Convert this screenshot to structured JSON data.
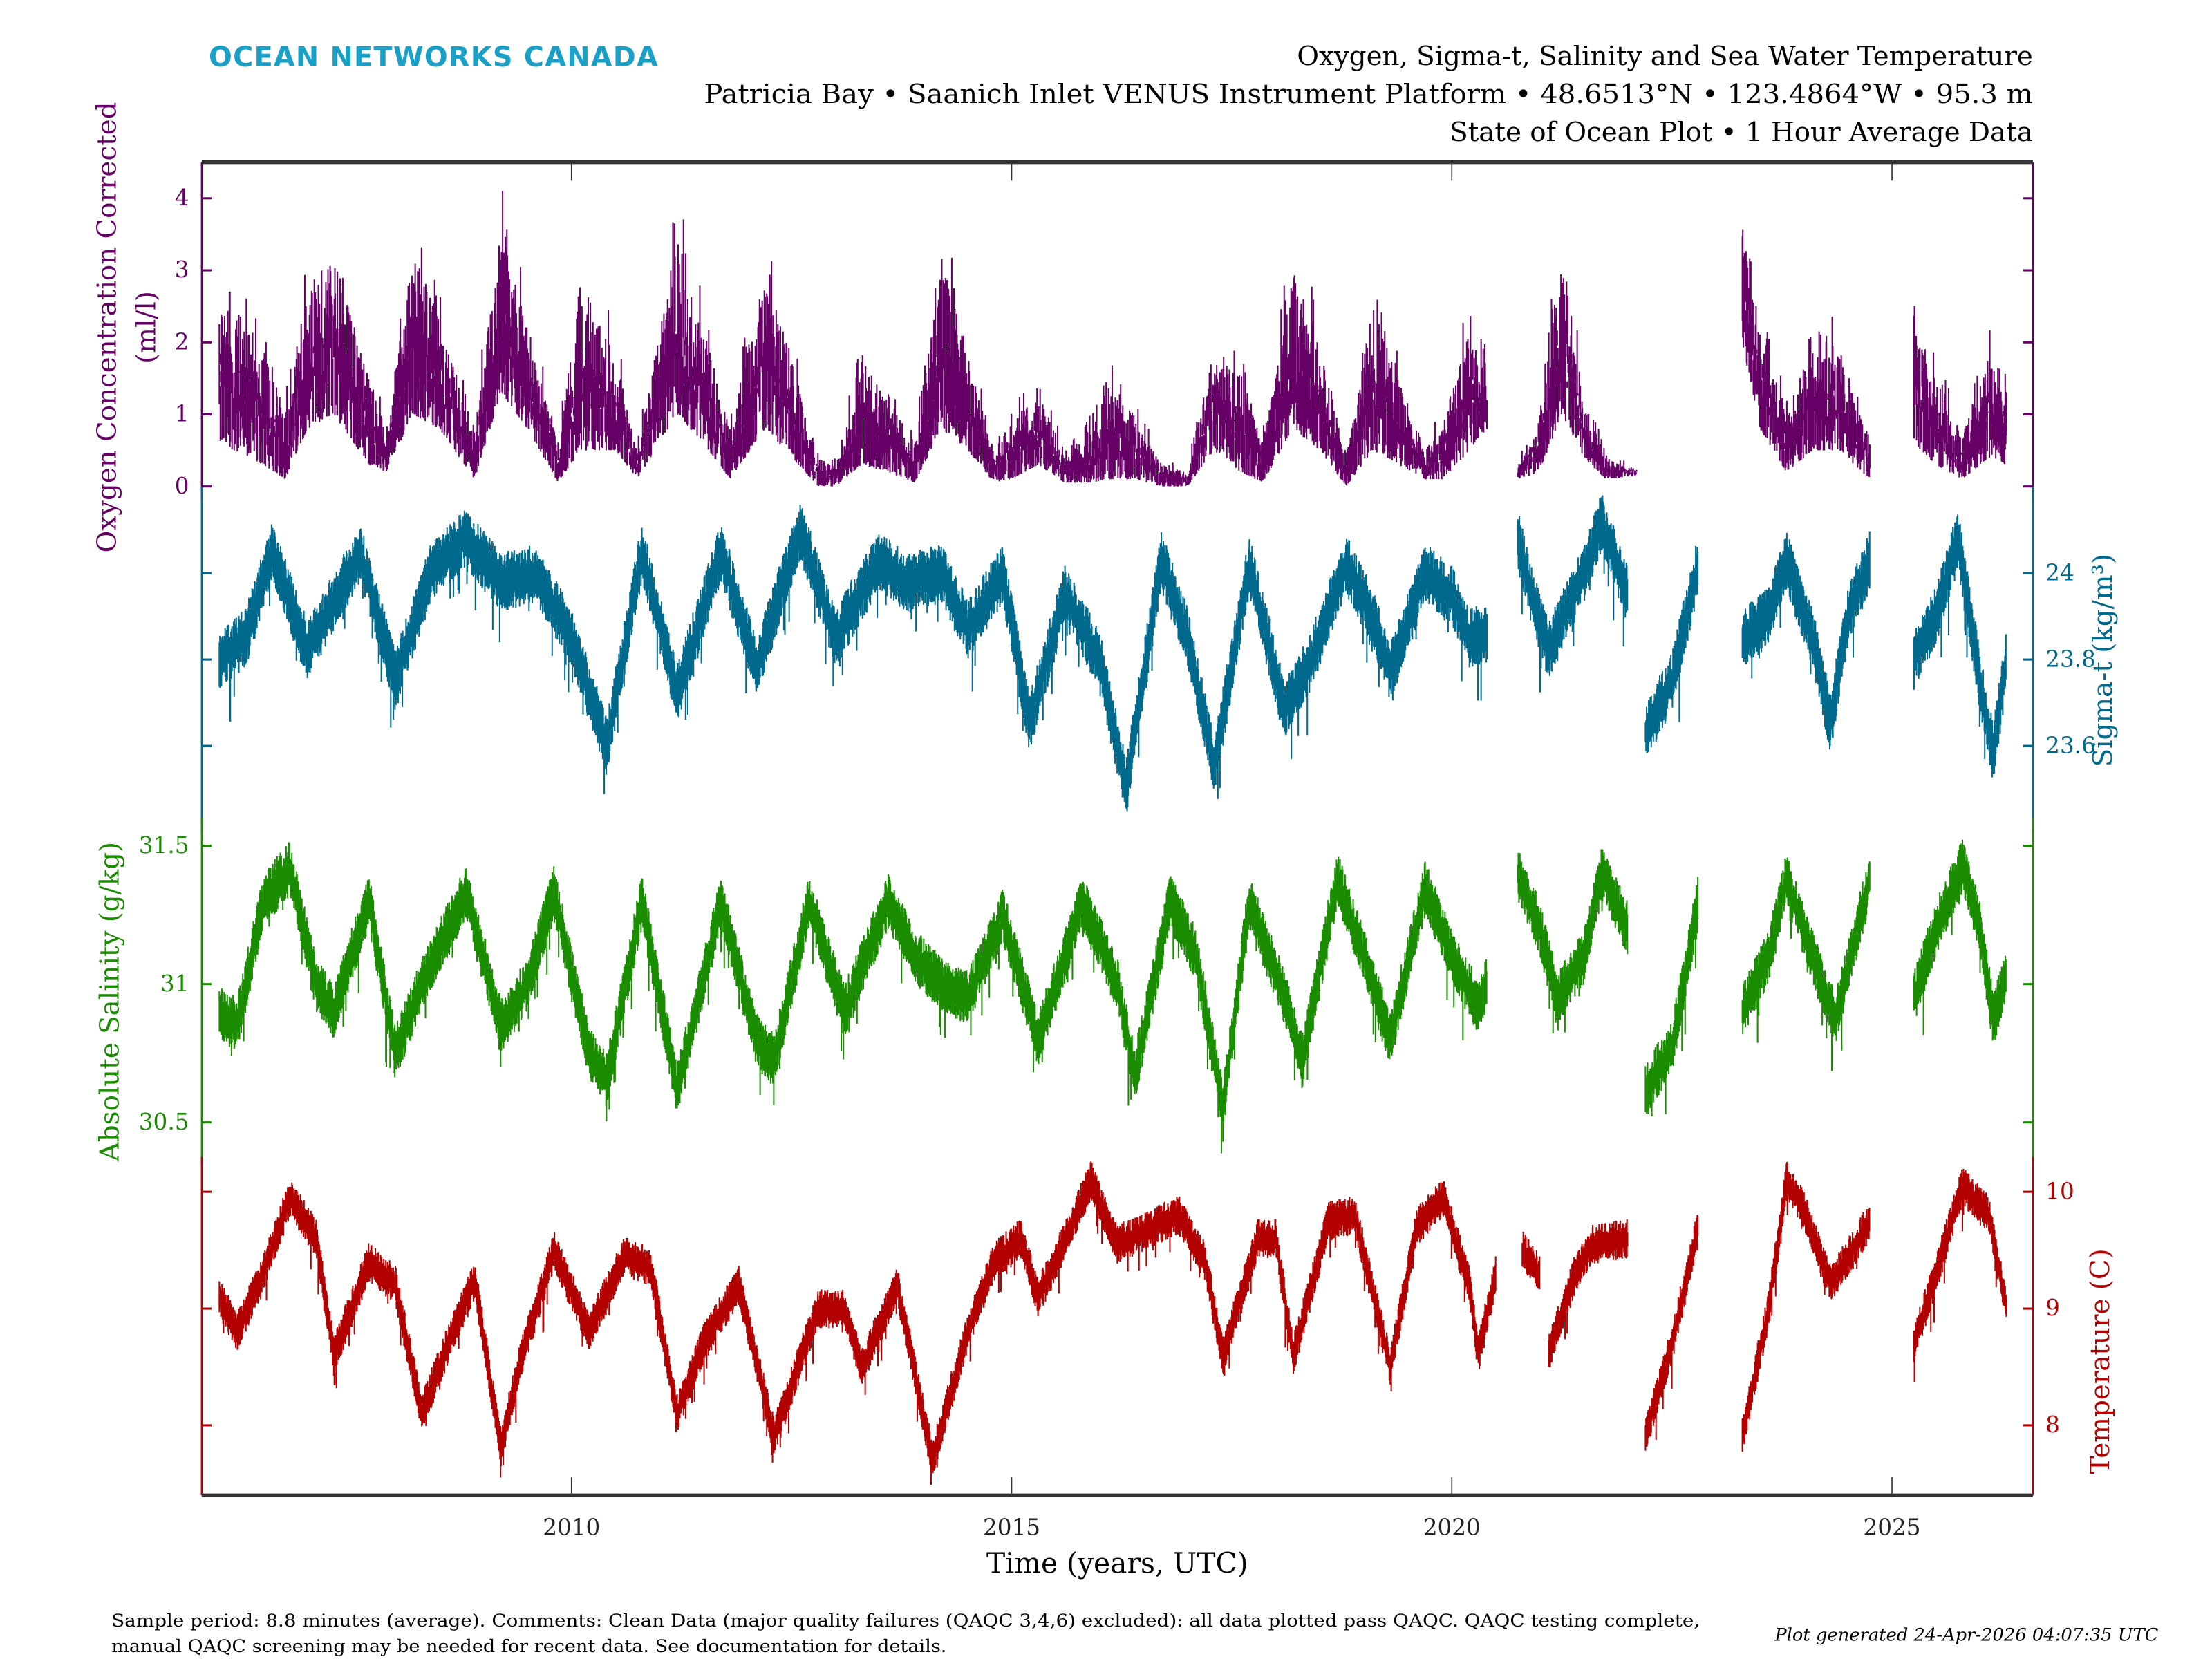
{
  "header": {
    "logo": "OCEAN NETWORKS CANADA",
    "title_line1": "Oxygen, Sigma-t, Salinity and Sea Water Temperature",
    "title_line2": "Patricia Bay • Saanich Inlet VENUS Instrument Platform • 48.6513°N • 123.4864°W • 95.3 m",
    "title_line3": "State of Ocean Plot • 1 Hour Average Data"
  },
  "footer": {
    "comment_line1": "Sample period: 8.8 minutes (average). Comments: Clean Data (major quality failures (QAQC 3,4,6) excluded): all data plotted pass QAQC. QAQC testing complete,",
    "comment_line2": "manual QAQC screening may be needed for recent data. See documentation for details.",
    "generated": "Plot generated 24-Apr-2026 04:07:35 UTC"
  },
  "colors": {
    "logo": "#1aa0c6",
    "oxygen": "#660066",
    "sigma": "#006a8e",
    "salinity": "#1a8c00",
    "temperature": "#b30000",
    "axis": "#333333"
  },
  "chart_data": {
    "type": "line",
    "xlabel": "Time (years, UTC)",
    "xlim": [
      2005.8,
      2026.6
    ],
    "xticks": [
      "2010",
      "2015",
      "2020",
      "2025"
    ],
    "grid": false,
    "panels": [
      {
        "key": "oxygen",
        "ylabel": "Oxygen Concentration Corrected",
        "ylabel2": "(ml/l)",
        "axis_side": "left",
        "ylim": [
          -0.2,
          4.5
        ],
        "yticks": [
          "0",
          "1",
          "2",
          "3",
          "4"
        ],
        "envelope_note_format": "[year, low, high]",
        "data": [
          [
            2006.0,
            0.6,
            2.7
          ],
          [
            2006.5,
            0.3,
            2.0
          ],
          [
            2006.75,
            0.1,
            1.0
          ],
          [
            2007.0,
            0.8,
            2.8
          ],
          [
            2007.3,
            1.0,
            3.2
          ],
          [
            2007.7,
            0.3,
            1.5
          ],
          [
            2007.9,
            0.2,
            0.8
          ],
          [
            2008.2,
            1.0,
            3.3
          ],
          [
            2008.5,
            0.8,
            2.3
          ],
          [
            2008.9,
            0.1,
            0.8
          ],
          [
            2009.2,
            1.3,
            3.6
          ],
          [
            2009.5,
            0.8,
            2.2
          ],
          [
            2009.85,
            0.05,
            0.6
          ],
          [
            2010.1,
            0.5,
            2.8
          ],
          [
            2010.5,
            0.5,
            1.8
          ],
          [
            2010.75,
            0.1,
            0.5
          ],
          [
            2011.2,
            1.0,
            3.5
          ],
          [
            2011.5,
            0.6,
            2.2
          ],
          [
            2011.8,
            0.1,
            0.8
          ],
          [
            2012.2,
            0.8,
            3.0
          ],
          [
            2012.5,
            0.4,
            1.8
          ],
          [
            2012.8,
            0.0,
            0.4
          ],
          [
            2013.0,
            0.0,
            0.3
          ],
          [
            2013.3,
            0.3,
            1.8
          ],
          [
            2013.6,
            0.2,
            1.2
          ],
          [
            2013.9,
            0.05,
            0.6
          ],
          [
            2014.2,
            0.8,
            3.2
          ],
          [
            2014.5,
            0.5,
            1.8
          ],
          [
            2014.8,
            0.05,
            0.5
          ],
          [
            2015.0,
            0.1,
            0.9
          ],
          [
            2015.3,
            0.3,
            1.3
          ],
          [
            2015.6,
            0.05,
            0.5
          ],
          [
            2015.9,
            0.05,
            0.8
          ],
          [
            2016.1,
            0.1,
            1.4
          ],
          [
            2016.4,
            0.1,
            1.0
          ],
          [
            2016.7,
            0.0,
            0.3
          ],
          [
            2017.0,
            0.0,
            0.2
          ],
          [
            2017.3,
            0.5,
            2.0
          ],
          [
            2017.6,
            0.2,
            1.5
          ],
          [
            2017.85,
            0.05,
            0.6
          ],
          [
            2018.2,
            0.8,
            3.0
          ],
          [
            2018.5,
            0.5,
            2.0
          ],
          [
            2018.8,
            0.0,
            0.4
          ],
          [
            2019.1,
            0.5,
            2.5
          ],
          [
            2019.4,
            0.3,
            1.5
          ],
          [
            2019.7,
            0.1,
            0.5
          ],
          [
            2019.9,
            0.1,
            0.9
          ],
          [
            2020.2,
            0.5,
            2.2
          ],
          [
            2020.4,
            0.8,
            2.0
          ],
          null,
          [
            2020.75,
            0.1,
            0.3
          ],
          [
            2021.0,
            0.2,
            1.0
          ],
          [
            2021.25,
            1.0,
            3.3
          ],
          [
            2021.5,
            0.4,
            1.2
          ],
          [
            2021.75,
            0.1,
            0.4
          ],
          [
            2022.1,
            0.15,
            0.25
          ],
          null,
          [
            2023.3,
            2.0,
            4.0
          ],
          [
            2023.5,
            0.8,
            2.2
          ],
          [
            2023.8,
            0.2,
            1.0
          ],
          [
            2024.1,
            0.5,
            1.8
          ],
          [
            2024.4,
            0.5,
            2.0
          ],
          [
            2024.75,
            0.1,
            0.5
          ],
          null,
          [
            2025.25,
            0.6,
            2.4
          ],
          [
            2025.5,
            0.3,
            1.5
          ],
          [
            2025.8,
            0.1,
            0.7
          ],
          [
            2026.1,
            0.4,
            1.8
          ],
          [
            2026.3,
            0.3,
            1.6
          ]
        ]
      },
      {
        "key": "sigma",
        "ylabel": "Sigma-t (kg/m³)",
        "axis_side": "right",
        "ylim": [
          23.4,
          24.2
        ],
        "yticks": [
          "23.6",
          "23.8",
          "24"
        ],
        "data": [
          [
            2006.0,
            23.8
          ],
          [
            2006.3,
            23.85
          ],
          [
            2006.6,
            24.05
          ],
          [
            2007.0,
            23.82
          ],
          [
            2007.4,
            23.97
          ],
          [
            2007.6,
            24.05
          ],
          [
            2008.0,
            23.75
          ],
          [
            2008.4,
            24.0
          ],
          [
            2008.8,
            24.08
          ],
          [
            2009.2,
            23.98
          ],
          [
            2009.6,
            24.0
          ],
          [
            2010.0,
            23.85
          ],
          [
            2010.4,
            23.6
          ],
          [
            2010.8,
            24.05
          ],
          [
            2011.2,
            23.72
          ],
          [
            2011.7,
            24.05
          ],
          [
            2012.1,
            23.78
          ],
          [
            2012.6,
            24.1
          ],
          [
            2013.0,
            23.85
          ],
          [
            2013.5,
            24.03
          ],
          [
            2013.8,
            23.98
          ],
          [
            2014.2,
            24.0
          ],
          [
            2014.5,
            23.87
          ],
          [
            2014.9,
            24.0
          ],
          [
            2015.2,
            23.65
          ],
          [
            2015.6,
            23.95
          ],
          [
            2016.0,
            23.8
          ],
          [
            2016.3,
            23.5
          ],
          [
            2016.7,
            24.03
          ],
          [
            2017.0,
            23.85
          ],
          [
            2017.3,
            23.55
          ],
          [
            2017.7,
            24.02
          ],
          [
            2018.1,
            23.68
          ],
          [
            2018.4,
            23.8
          ],
          [
            2018.8,
            24.02
          ],
          [
            2019.1,
            23.9
          ],
          [
            2019.3,
            23.77
          ],
          [
            2019.7,
            24.0
          ],
          [
            2020.0,
            23.95
          ],
          [
            2020.2,
            23.85
          ],
          [
            2020.4,
            23.86
          ],
          null,
          [
            2020.75,
            24.08
          ],
          [
            2020.9,
            23.95
          ],
          [
            2021.1,
            23.82
          ],
          [
            2021.5,
            24.0
          ],
          [
            2021.7,
            24.12
          ],
          [
            2022.0,
            23.95
          ],
          null,
          [
            2022.2,
            23.63
          ],
          [
            2022.5,
            23.75
          ],
          [
            2022.8,
            24.02
          ],
          null,
          [
            2023.3,
            23.85
          ],
          [
            2023.6,
            23.9
          ],
          [
            2023.8,
            24.03
          ],
          [
            2024.1,
            23.85
          ],
          [
            2024.3,
            23.65
          ],
          [
            2024.5,
            23.9
          ],
          [
            2024.75,
            24.03
          ],
          null,
          [
            2025.25,
            23.8
          ],
          [
            2025.5,
            23.9
          ],
          [
            2025.75,
            24.08
          ],
          [
            2026.0,
            23.75
          ],
          [
            2026.15,
            23.58
          ],
          [
            2026.3,
            23.8
          ]
        ]
      },
      {
        "key": "salinity",
        "ylabel": "Absolute Salinity (g/kg)",
        "axis_side": "left",
        "ylim": [
          30.35,
          31.6
        ],
        "yticks": [
          "30.5",
          "31",
          "31.5"
        ],
        "data": [
          [
            2006.0,
            30.9
          ],
          [
            2006.2,
            30.85
          ],
          [
            2006.5,
            31.3
          ],
          [
            2006.8,
            31.42
          ],
          [
            2007.1,
            31.0
          ],
          [
            2007.3,
            30.9
          ],
          [
            2007.7,
            31.3
          ],
          [
            2008.0,
            30.75
          ],
          [
            2008.3,
            31.0
          ],
          [
            2008.8,
            31.33
          ],
          [
            2009.2,
            30.85
          ],
          [
            2009.5,
            31.0
          ],
          [
            2009.8,
            31.33
          ],
          [
            2010.2,
            30.75
          ],
          [
            2010.4,
            30.65
          ],
          [
            2010.8,
            31.3
          ],
          [
            2011.2,
            30.62
          ],
          [
            2011.7,
            31.3
          ],
          [
            2012.1,
            30.8
          ],
          [
            2012.3,
            30.72
          ],
          [
            2012.7,
            31.3
          ],
          [
            2013.1,
            30.9
          ],
          [
            2013.6,
            31.3
          ],
          [
            2013.9,
            31.1
          ],
          [
            2014.2,
            31.0
          ],
          [
            2014.5,
            30.95
          ],
          [
            2014.9,
            31.25
          ],
          [
            2015.3,
            30.8
          ],
          [
            2015.8,
            31.3
          ],
          [
            2016.2,
            31.0
          ],
          [
            2016.4,
            30.67
          ],
          [
            2016.8,
            31.3
          ],
          [
            2017.1,
            31.1
          ],
          [
            2017.4,
            30.55
          ],
          [
            2017.7,
            31.3
          ],
          [
            2018.1,
            30.95
          ],
          [
            2018.3,
            30.72
          ],
          [
            2018.7,
            31.38
          ],
          [
            2019.0,
            31.1
          ],
          [
            2019.3,
            30.8
          ],
          [
            2019.7,
            31.35
          ],
          [
            2020.0,
            31.1
          ],
          [
            2020.3,
            30.92
          ],
          [
            2020.4,
            31.0
          ],
          null,
          [
            2020.75,
            31.4
          ],
          [
            2021.0,
            31.2
          ],
          [
            2021.2,
            30.95
          ],
          [
            2021.5,
            31.1
          ],
          [
            2021.7,
            31.4
          ],
          [
            2022.0,
            31.2
          ],
          null,
          [
            2022.2,
            30.62
          ],
          [
            2022.5,
            30.77
          ],
          [
            2022.8,
            31.3
          ],
          null,
          [
            2023.3,
            30.9
          ],
          [
            2023.6,
            31.1
          ],
          [
            2023.8,
            31.38
          ],
          [
            2024.1,
            31.1
          ],
          [
            2024.35,
            30.87
          ],
          [
            2024.75,
            31.38
          ],
          null,
          [
            2025.25,
            30.95
          ],
          [
            2025.5,
            31.2
          ],
          [
            2025.8,
            31.43
          ],
          [
            2026.0,
            31.2
          ],
          [
            2026.15,
            30.87
          ],
          [
            2026.3,
            31.05
          ]
        ]
      },
      {
        "key": "temperature",
        "ylabel": "Temperature (C)",
        "axis_side": "right",
        "ylim": [
          7.4,
          10.3
        ],
        "yticks": [
          "8",
          "9",
          "10"
        ],
        "data": [
          [
            2006.0,
            9.1
          ],
          [
            2006.2,
            8.8
          ],
          [
            2006.5,
            9.3
          ],
          [
            2006.8,
            9.95
          ],
          [
            2007.1,
            9.6
          ],
          [
            2007.3,
            8.6
          ],
          [
            2007.7,
            9.4
          ],
          [
            2008.0,
            9.2
          ],
          [
            2008.3,
            8.1
          ],
          [
            2008.6,
            8.7
          ],
          [
            2008.9,
            9.25
          ],
          [
            2009.2,
            7.8
          ],
          [
            2009.4,
            8.5
          ],
          [
            2009.8,
            9.5
          ],
          [
            2010.2,
            8.8
          ],
          [
            2010.6,
            9.45
          ],
          [
            2010.9,
            9.35
          ],
          [
            2011.2,
            8.1
          ],
          [
            2011.5,
            8.7
          ],
          [
            2011.9,
            9.2
          ],
          [
            2012.3,
            7.9
          ],
          [
            2012.8,
            9.0
          ],
          [
            2013.1,
            9.0
          ],
          [
            2013.3,
            8.5
          ],
          [
            2013.7,
            9.2
          ],
          [
            2014.1,
            7.7
          ],
          [
            2014.5,
            8.8
          ],
          [
            2014.8,
            9.4
          ],
          [
            2015.1,
            9.6
          ],
          [
            2015.3,
            9.1
          ],
          [
            2015.5,
            9.4
          ],
          [
            2015.9,
            10.1
          ],
          [
            2016.2,
            9.55
          ],
          [
            2016.6,
            9.7
          ],
          [
            2016.9,
            9.8
          ],
          [
            2017.2,
            9.4
          ],
          [
            2017.4,
            8.6
          ],
          [
            2017.8,
            9.6
          ],
          [
            2018.0,
            9.6
          ],
          [
            2018.2,
            8.6
          ],
          [
            2018.6,
            9.75
          ],
          [
            2018.9,
            9.8
          ],
          [
            2019.3,
            8.5
          ],
          [
            2019.6,
            9.7
          ],
          [
            2019.9,
            9.95
          ],
          [
            2020.2,
            9.2
          ],
          [
            2020.3,
            8.6
          ],
          [
            2020.5,
            9.3
          ],
          null,
          [
            2020.8,
            9.5
          ],
          [
            2021.0,
            9.3
          ],
          null,
          [
            2021.1,
            8.6
          ],
          [
            2021.4,
            9.3
          ],
          [
            2021.6,
            9.55
          ],
          [
            2022.0,
            9.6
          ],
          null,
          [
            2022.2,
            7.9
          ],
          [
            2022.5,
            8.7
          ],
          [
            2022.8,
            9.7
          ],
          null,
          [
            2023.3,
            7.9
          ],
          [
            2023.6,
            9.0
          ],
          [
            2023.8,
            10.1
          ],
          [
            2024.0,
            9.85
          ],
          [
            2024.3,
            9.2
          ],
          [
            2024.75,
            9.75
          ],
          null,
          [
            2025.25,
            8.7
          ],
          [
            2025.5,
            9.3
          ],
          [
            2025.8,
            10.05
          ],
          [
            2026.1,
            9.8
          ],
          [
            2026.3,
            9.0
          ]
        ]
      }
    ]
  }
}
